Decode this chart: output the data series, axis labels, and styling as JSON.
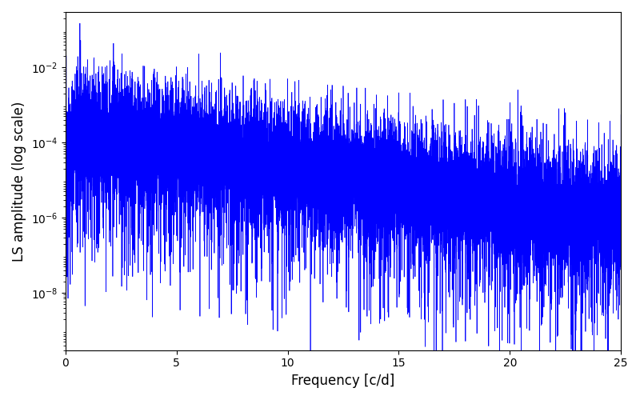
{
  "title": "",
  "xlabel": "Frequency [c/d]",
  "ylabel": "LS amplitude (log scale)",
  "xlim": [
    0,
    25
  ],
  "ylim": [
    3e-10,
    0.3
  ],
  "line_color": "blue",
  "line_width": 0.5,
  "background_color": "#ffffff",
  "figsize": [
    8.0,
    5.0
  ],
  "dpi": 100,
  "n_points": 15000,
  "seed": 12345,
  "base_amplitude_high": 0.0002,
  "base_amplitude_low": 0.0001,
  "decay_rate": 0.22,
  "yticks": [
    1e-08,
    1e-06,
    0.0001,
    0.01
  ],
  "xticks": [
    0,
    5,
    10,
    15,
    20,
    25
  ]
}
